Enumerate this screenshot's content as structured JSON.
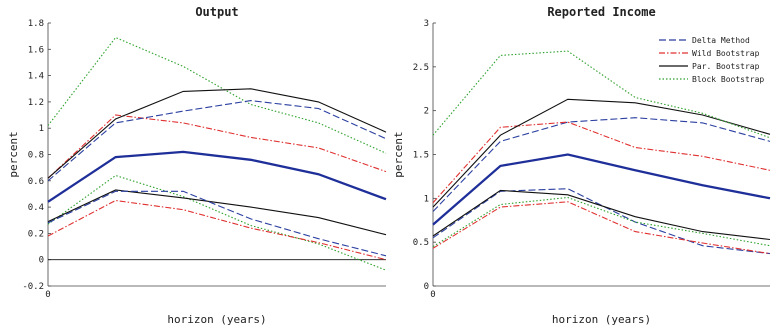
{
  "chart_data": [
    {
      "type": "line",
      "title": "Output",
      "xlabel": "horizon (years)",
      "ylabel": "percent",
      "x": [
        0,
        1,
        2,
        3,
        4,
        5
      ],
      "xticks": [
        "0"
      ],
      "ylim": [
        -0.2,
        1.8
      ],
      "yticks": [
        "-0.2",
        "0",
        "0.2",
        "0.4",
        "0.6",
        "0.8",
        "1",
        "1.2",
        "1.4",
        "1.6",
        "1.8"
      ],
      "zero_line": true,
      "point_estimate": [
        0.44,
        0.78,
        0.82,
        0.76,
        0.65,
        0.46
      ],
      "series": [
        {
          "style": "dotted",
          "color": "#2ca02c",
          "band": "upper",
          "values": [
            1.02,
            1.69,
            1.47,
            1.18,
            1.04,
            0.81
          ]
        },
        {
          "style": "dotted",
          "color": "#2ca02c",
          "band": "lower",
          "values": [
            0.27,
            0.64,
            0.48,
            0.26,
            0.12,
            -0.08
          ]
        },
        {
          "style": "dashdot",
          "color": "#e03030",
          "band": "upper",
          "values": [
            0.62,
            1.1,
            1.04,
            0.93,
            0.85,
            0.67
          ]
        },
        {
          "style": "dashdot",
          "color": "#e03030",
          "band": "lower",
          "values": [
            0.18,
            0.45,
            0.38,
            0.24,
            0.13,
            0.0
          ]
        },
        {
          "style": "solid",
          "color": "#111111",
          "band": "upper",
          "values": [
            0.62,
            1.07,
            1.28,
            1.3,
            1.2,
            0.97
          ]
        },
        {
          "style": "solid",
          "color": "#111111",
          "band": "lower",
          "values": [
            0.29,
            0.53,
            0.47,
            0.4,
            0.32,
            0.19
          ]
        },
        {
          "style": "dashed",
          "color": "#2b3fa0",
          "band": "upper",
          "values": [
            0.6,
            1.04,
            1.13,
            1.21,
            1.15,
            0.92
          ]
        },
        {
          "style": "dashed",
          "color": "#2b3fa0",
          "band": "lower",
          "values": [
            0.28,
            0.52,
            0.52,
            0.31,
            0.16,
            0.03
          ]
        }
      ]
    },
    {
      "type": "line",
      "title": "Reported Income",
      "xlabel": "horizon (years)",
      "ylabel": "percent",
      "x": [
        0,
        1,
        2,
        3,
        4,
        5
      ],
      "xticks": [
        "0"
      ],
      "ylim": [
        0,
        3
      ],
      "yticks": [
        "0",
        "0.5",
        "1",
        "1.5",
        "2",
        "2.5",
        "3"
      ],
      "zero_line": false,
      "legend": {
        "placement": "top-right",
        "entries": [
          "Delta Method",
          "Wild Bootstrap",
          "Par. Bootstrap",
          "Block Bootstrap"
        ]
      },
      "point_estimate": [
        0.7,
        1.37,
        1.5,
        1.32,
        1.15,
        1.0
      ],
      "series": [
        {
          "name": "Delta Method",
          "style": "dashed",
          "color": "#2b3fa0",
          "band": "upper",
          "values": [
            0.85,
            1.65,
            1.87,
            1.92,
            1.86,
            1.65
          ]
        },
        {
          "style": "dashed",
          "color": "#2b3fa0",
          "band": "lower",
          "values": [
            0.55,
            1.08,
            1.11,
            0.73,
            0.46,
            0.37
          ]
        },
        {
          "name": "Wild Bootstrap",
          "style": "dashdot",
          "color": "#e03030",
          "band": "upper",
          "values": [
            0.95,
            1.81,
            1.87,
            1.58,
            1.48,
            1.32
          ]
        },
        {
          "style": "dashdot",
          "color": "#e03030",
          "band": "lower",
          "values": [
            0.43,
            0.9,
            0.96,
            0.62,
            0.49,
            0.37
          ]
        },
        {
          "name": "Par. Bootstrap",
          "style": "solid",
          "color": "#111111",
          "band": "upper",
          "values": [
            0.9,
            1.72,
            2.13,
            2.09,
            1.95,
            1.73
          ]
        },
        {
          "style": "solid",
          "color": "#111111",
          "band": "lower",
          "values": [
            0.57,
            1.09,
            1.04,
            0.79,
            0.62,
            0.53
          ]
        },
        {
          "name": "Block Bootstrap",
          "style": "dotted",
          "color": "#2ca02c",
          "band": "upper",
          "values": [
            1.72,
            2.63,
            2.68,
            2.15,
            1.97,
            1.69
          ]
        },
        {
          "style": "dotted",
          "color": "#2ca02c",
          "band": "lower",
          "values": [
            0.45,
            0.93,
            1.01,
            0.73,
            0.6,
            0.46
          ]
        }
      ]
    }
  ]
}
